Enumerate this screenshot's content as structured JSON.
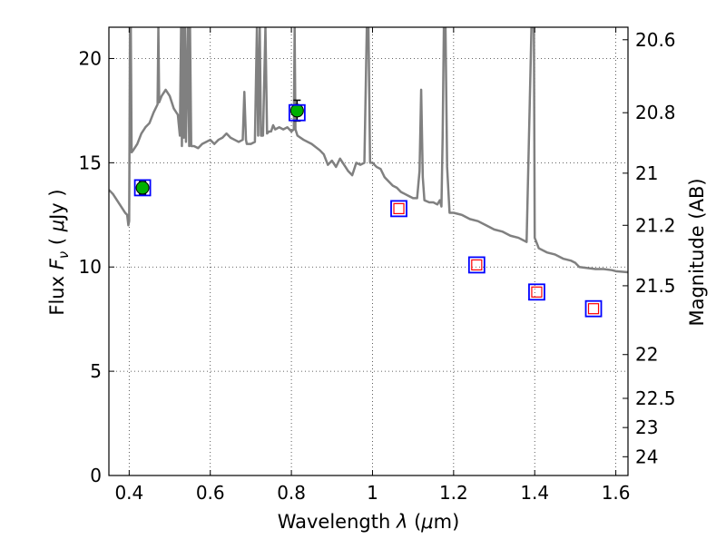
{
  "chart_data": {
    "type": "line",
    "xlabel": "Wavelength  λ (μm)",
    "ylabel": "Flux  F_ν  ( μJy )",
    "y2label": "Magnitude (AB)",
    "xlim": [
      0.35,
      1.63
    ],
    "ylim": [
      0,
      21.5
    ],
    "grid": true,
    "xticks": [
      0.4,
      0.6,
      0.8,
      1.0,
      1.2,
      1.4,
      1.6
    ],
    "xtick_labels": [
      "0.4",
      "0.6",
      "0.8",
      "1",
      "1.2",
      "1.4",
      "1.6"
    ],
    "yticks": [
      0,
      5,
      10,
      15,
      20
    ],
    "ytick_labels": [
      "0",
      "5",
      "10",
      "15",
      "20"
    ],
    "y2ticks": [
      {
        "label": "20.6",
        "flux": 20.9
      },
      {
        "label": "20.8",
        "flux": 17.4
      },
      {
        "label": "21",
        "flux": 14.5
      },
      {
        "label": "21.2",
        "flux": 12.0
      },
      {
        "label": "21.5",
        "flux": 9.1
      },
      {
        "label": "22",
        "flux": 5.8
      },
      {
        "label": "22.5",
        "flux": 3.7
      },
      {
        "label": "23",
        "flux": 2.3
      },
      {
        "label": "24",
        "flux": 0.9
      }
    ],
    "series": [
      {
        "kind": "model-spectrum",
        "color": "#808080",
        "points": [
          [
            0.35,
            13.7
          ],
          [
            0.36,
            13.5
          ],
          [
            0.37,
            13.2
          ],
          [
            0.38,
            12.9
          ],
          [
            0.39,
            12.6
          ],
          [
            0.395,
            12.5
          ],
          [
            0.398,
            12.0
          ],
          [
            0.4,
            12.2
          ],
          [
            0.402,
            21.5
          ],
          [
            0.404,
            21.5
          ],
          [
            0.406,
            15.5
          ],
          [
            0.41,
            15.6
          ],
          [
            0.42,
            15.9
          ],
          [
            0.43,
            16.4
          ],
          [
            0.44,
            16.7
          ],
          [
            0.45,
            16.9
          ],
          [
            0.46,
            17.4
          ],
          [
            0.47,
            17.8
          ],
          [
            0.472,
            21.5
          ],
          [
            0.474,
            17.9
          ],
          [
            0.48,
            18.2
          ],
          [
            0.49,
            18.5
          ],
          [
            0.5,
            18.2
          ],
          [
            0.51,
            17.6
          ],
          [
            0.52,
            17.3
          ],
          [
            0.525,
            16.3
          ],
          [
            0.528,
            21.5
          ],
          [
            0.53,
            15.8
          ],
          [
            0.533,
            21.5
          ],
          [
            0.535,
            16.2
          ],
          [
            0.538,
            21.5
          ],
          [
            0.54,
            16.0
          ],
          [
            0.545,
            21.5
          ],
          [
            0.548,
            15.8
          ],
          [
            0.55,
            21.5
          ],
          [
            0.553,
            15.8
          ],
          [
            0.56,
            15.8
          ],
          [
            0.57,
            15.7
          ],
          [
            0.58,
            15.9
          ],
          [
            0.59,
            16.0
          ],
          [
            0.6,
            16.1
          ],
          [
            0.61,
            15.9
          ],
          [
            0.62,
            16.1
          ],
          [
            0.63,
            16.2
          ],
          [
            0.64,
            16.4
          ],
          [
            0.65,
            16.2
          ],
          [
            0.66,
            16.1
          ],
          [
            0.67,
            16.0
          ],
          [
            0.68,
            16.1
          ],
          [
            0.684,
            18.4
          ],
          [
            0.688,
            16.1
          ],
          [
            0.69,
            15.9
          ],
          [
            0.7,
            15.9
          ],
          [
            0.71,
            16.0
          ],
          [
            0.715,
            21.5
          ],
          [
            0.718,
            16.3
          ],
          [
            0.722,
            21.5
          ],
          [
            0.725,
            16.3
          ],
          [
            0.73,
            16.3
          ],
          [
            0.736,
            21.5
          ],
          [
            0.74,
            16.4
          ],
          [
            0.745,
            16.5
          ],
          [
            0.75,
            16.5
          ],
          [
            0.755,
            16.8
          ],
          [
            0.76,
            16.6
          ],
          [
            0.77,
            16.7
          ],
          [
            0.78,
            16.6
          ],
          [
            0.79,
            16.7
          ],
          [
            0.8,
            16.5
          ],
          [
            0.806,
            16.6
          ],
          [
            0.808,
            21.5
          ],
          [
            0.81,
            16.6
          ],
          [
            0.815,
            16.3
          ],
          [
            0.83,
            16.1
          ],
          [
            0.85,
            15.9
          ],
          [
            0.87,
            15.6
          ],
          [
            0.88,
            15.4
          ],
          [
            0.89,
            14.9
          ],
          [
            0.9,
            15.1
          ],
          [
            0.91,
            14.8
          ],
          [
            0.92,
            15.2
          ],
          [
            0.93,
            14.9
          ],
          [
            0.94,
            14.6
          ],
          [
            0.95,
            14.4
          ],
          [
            0.96,
            15.0
          ],
          [
            0.97,
            14.9
          ],
          [
            0.98,
            15.0
          ],
          [
            0.986,
            21.5
          ],
          [
            0.99,
            21.5
          ],
          [
            0.994,
            15.0
          ],
          [
            1.0,
            15.0
          ],
          [
            1.01,
            14.8
          ],
          [
            1.02,
            14.7
          ],
          [
            1.03,
            14.3
          ],
          [
            1.04,
            14.1
          ],
          [
            1.05,
            13.9
          ],
          [
            1.06,
            13.8
          ],
          [
            1.07,
            13.6
          ],
          [
            1.08,
            13.5
          ],
          [
            1.09,
            13.4
          ],
          [
            1.1,
            13.3
          ],
          [
            1.11,
            13.3
          ],
          [
            1.116,
            14.6
          ],
          [
            1.12,
            18.5
          ],
          [
            1.124,
            14.3
          ],
          [
            1.128,
            13.2
          ],
          [
            1.14,
            13.1
          ],
          [
            1.15,
            13.1
          ],
          [
            1.16,
            13.0
          ],
          [
            1.166,
            13.2
          ],
          [
            1.17,
            12.9
          ],
          [
            1.173,
            16.3
          ],
          [
            1.176,
            21.5
          ],
          [
            1.18,
            21.5
          ],
          [
            1.184,
            14.8
          ],
          [
            1.19,
            12.6
          ],
          [
            1.2,
            12.6
          ],
          [
            1.22,
            12.5
          ],
          [
            1.24,
            12.3
          ],
          [
            1.26,
            12.2
          ],
          [
            1.28,
            12.0
          ],
          [
            1.3,
            11.8
          ],
          [
            1.32,
            11.7
          ],
          [
            1.34,
            11.5
          ],
          [
            1.36,
            11.4
          ],
          [
            1.38,
            11.2
          ],
          [
            1.392,
            21.5
          ],
          [
            1.398,
            21.5
          ],
          [
            1.4,
            11.4
          ],
          [
            1.41,
            10.9
          ],
          [
            1.43,
            10.7
          ],
          [
            1.45,
            10.6
          ],
          [
            1.47,
            10.4
          ],
          [
            1.49,
            10.3
          ],
          [
            1.5,
            10.2
          ],
          [
            1.51,
            10.0
          ],
          [
            1.53,
            9.95
          ],
          [
            1.55,
            9.9
          ],
          [
            1.57,
            9.9
          ],
          [
            1.59,
            9.85
          ],
          [
            1.6,
            9.8
          ],
          [
            1.63,
            9.75
          ]
        ]
      },
      {
        "kind": "observed-photometry",
        "marker": "circle",
        "color": "#00b000",
        "points": [
          {
            "x": 0.433,
            "y": 13.8,
            "err": 0.3
          },
          {
            "x": 0.814,
            "y": 17.5,
            "err": 0.5
          }
        ]
      },
      {
        "kind": "model-photometry",
        "marker": "square",
        "color": "#ff0000",
        "points": [
          {
            "x": 1.065,
            "y": 12.8
          },
          {
            "x": 1.257,
            "y": 10.1
          },
          {
            "x": 1.405,
            "y": 8.8
          },
          {
            "x": 1.545,
            "y": 8.0
          }
        ]
      },
      {
        "kind": "synthetic-photometry-box",
        "marker": "square-open",
        "color": "#0000ff",
        "points": [
          {
            "x": 0.433,
            "y": 13.8
          },
          {
            "x": 0.814,
            "y": 17.4
          },
          {
            "x": 1.065,
            "y": 12.8
          },
          {
            "x": 1.257,
            "y": 10.1
          },
          {
            "x": 1.405,
            "y": 8.8
          },
          {
            "x": 1.545,
            "y": 8.0
          }
        ]
      }
    ]
  }
}
